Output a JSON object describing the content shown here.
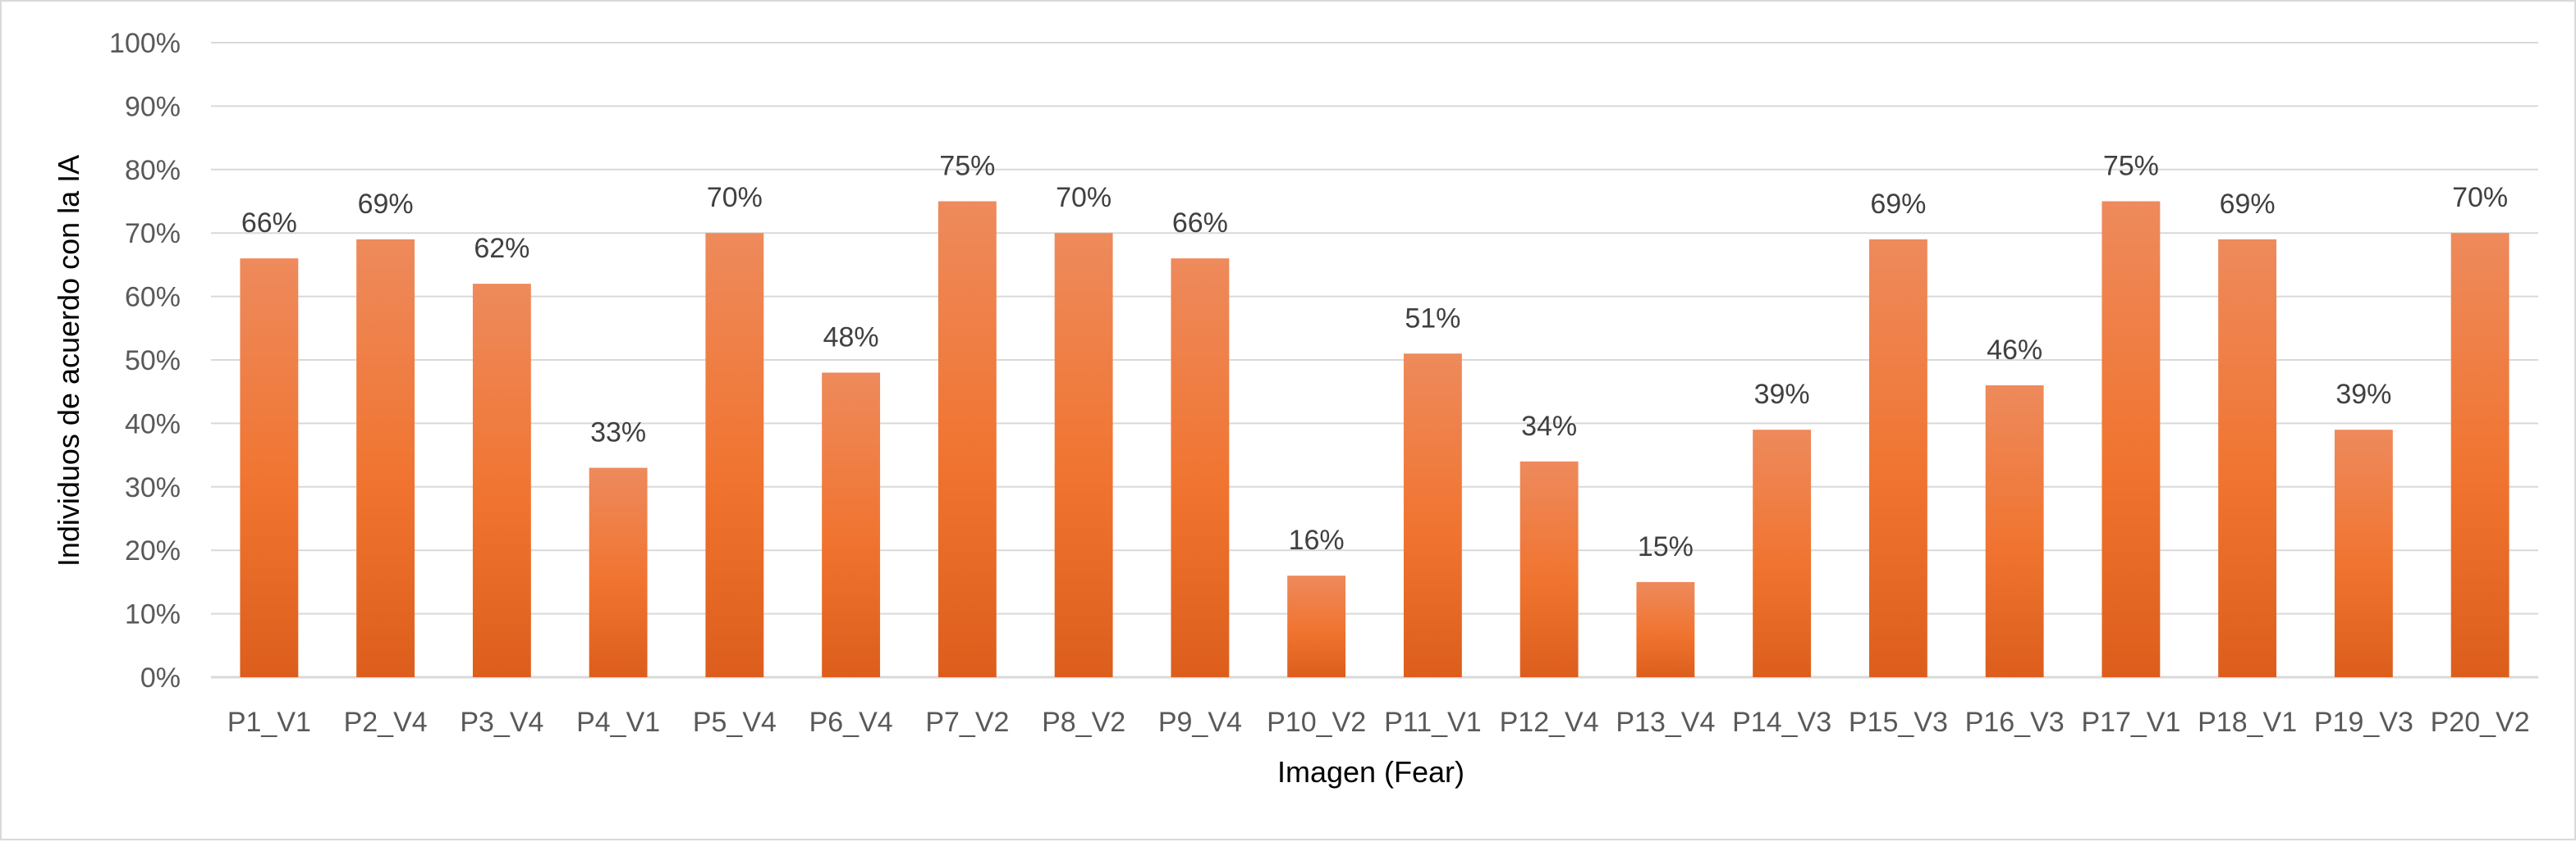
{
  "chart_data": {
    "type": "bar",
    "title": "",
    "xlabel": "Imagen (Fear)",
    "ylabel": "Individuos de acuerdo con la IA",
    "ylim": [
      0,
      100
    ],
    "y_ticks": [
      "0%",
      "10%",
      "20%",
      "30%",
      "40%",
      "50%",
      "60%",
      "70%",
      "80%",
      "90%",
      "100%"
    ],
    "grid": true,
    "legend": "none",
    "categories": [
      "P1_V1",
      "P2_V4",
      "P3_V4",
      "P4_V1",
      "P5_V4",
      "P6_V4",
      "P7_V2",
      "P8_V2",
      "P9_V4",
      "P10_V2",
      "P11_V1",
      "P12_V4",
      "P13_V4",
      "P14_V3",
      "P15_V3",
      "P16_V3",
      "P17_V1",
      "P18_V1",
      "P19_V3",
      "P20_V2"
    ],
    "values": [
      66,
      69,
      62,
      33,
      70,
      48,
      75,
      70,
      66,
      16,
      51,
      34,
      15,
      39,
      69,
      46,
      75,
      69,
      39,
      70
    ],
    "data_labels": [
      "66%",
      "69%",
      "62%",
      "33%",
      "70%",
      "48%",
      "75%",
      "70%",
      "66%",
      "16%",
      "51%",
      "34%",
      "15%",
      "39%",
      "69%",
      "46%",
      "75%",
      "69%",
      "39%",
      "70%"
    ],
    "colors": {
      "bar_top": "#ee8a5c",
      "bar_mid": "#f07430",
      "bar_bottom": "#dd5e1c",
      "grid": "#d9d9d9"
    }
  }
}
